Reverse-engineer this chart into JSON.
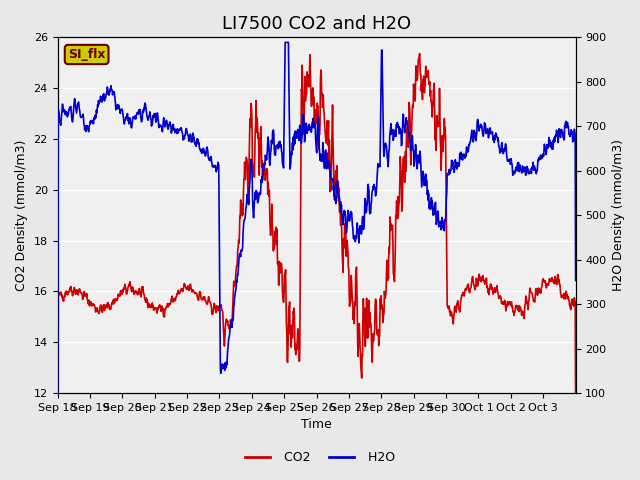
{
  "title": "LI7500 CO2 and H2O",
  "xlabel": "Time",
  "ylabel_left": "CO2 Density (mmol/m3)",
  "ylabel_right": "H2O Density (mmol/m3)",
  "co2_color": "#CC0000",
  "h2o_color": "#0000CC",
  "ylim_left": [
    12,
    26
  ],
  "ylim_right": [
    100,
    900
  ],
  "yticks_left": [
    12,
    14,
    16,
    18,
    20,
    22,
    24,
    26
  ],
  "yticks_right": [
    100,
    200,
    300,
    400,
    500,
    600,
    700,
    800,
    900
  ],
  "xtick_labels": [
    "Sep 18",
    "Sep 19",
    "Sep 20",
    "Sep 21",
    "Sep 22",
    "Sep 23",
    "Sep 24",
    "Sep 25",
    "Sep 26",
    "Sep 27",
    "Sep 28",
    "Sep 29",
    "Sep 30",
    "Oct 1",
    "Oct 2",
    "Oct 3"
  ],
  "watermark_text": "SI_flx",
  "watermark_bg": "#CCCC00",
  "watermark_fg": "#660000",
  "bg_color": "#E8E8E8",
  "plot_bg": "#F0F0F0",
  "grid_color": "#FFFFFF",
  "title_fontsize": 13,
  "axis_fontsize": 9,
  "tick_fontsize": 8,
  "legend_fontsize": 9,
  "linewidth_co2": 1.2,
  "linewidth_h2o": 1.2
}
